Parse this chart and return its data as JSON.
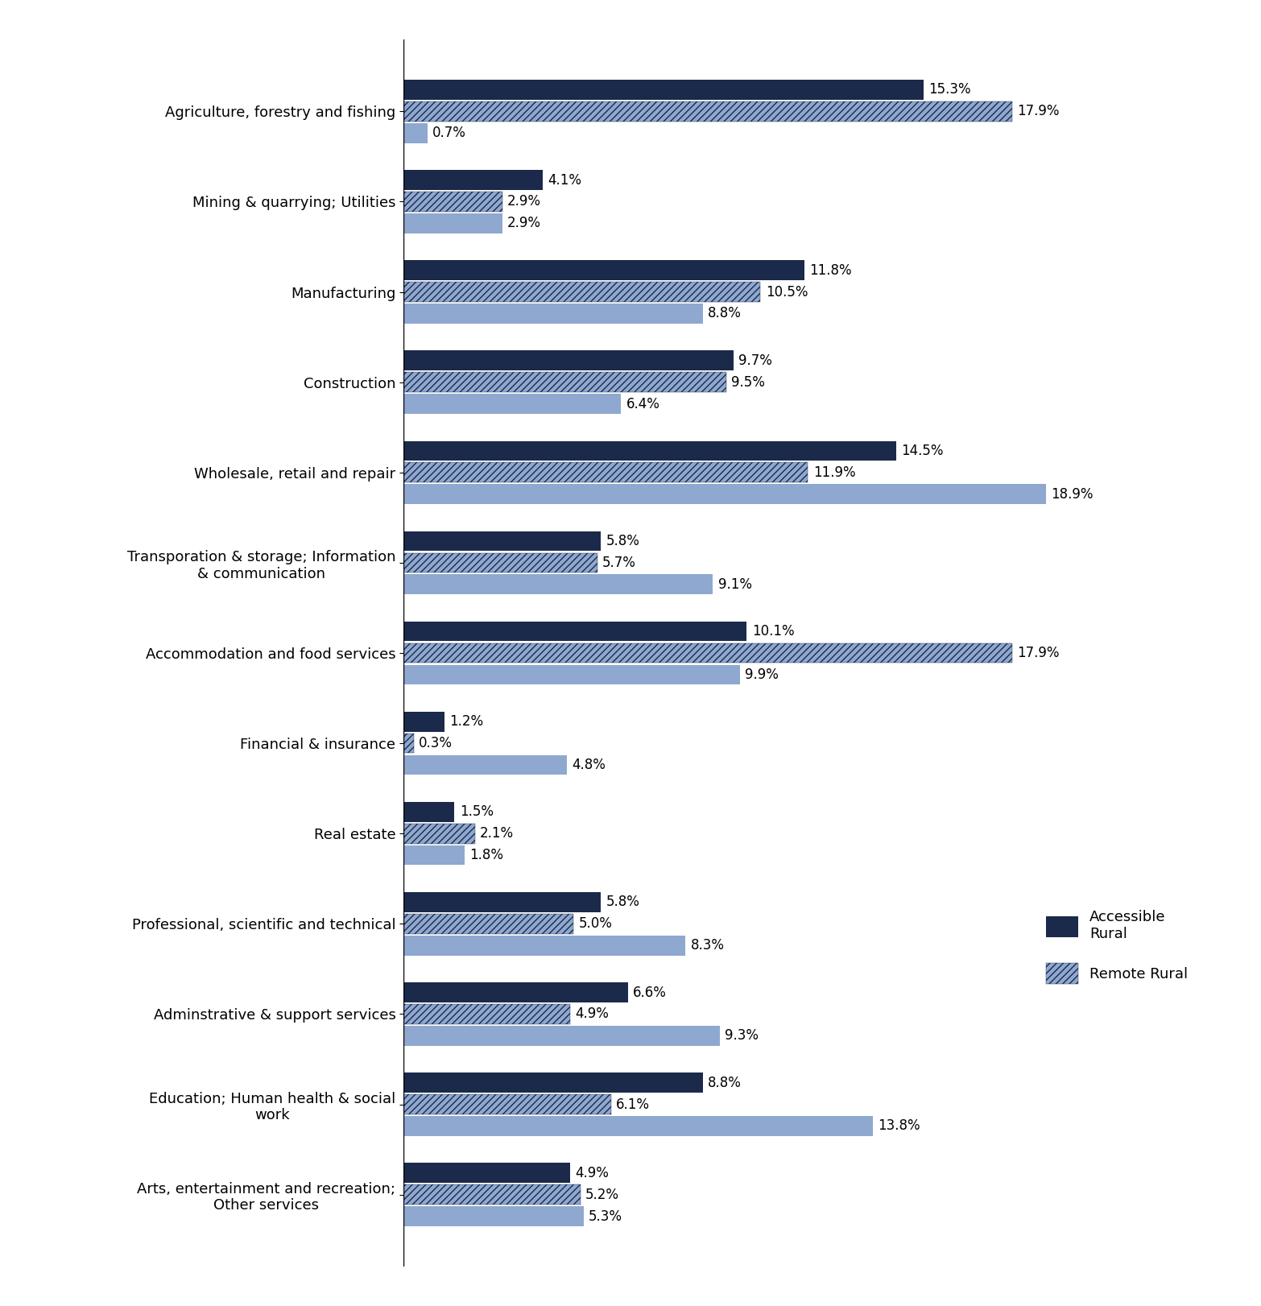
{
  "categories": [
    "Agriculture, forestry and fishing",
    "Mining & quarrying; Utilities",
    "Manufacturing",
    "Construction",
    "Wholesale, retail and repair",
    "Transporation & storage; Information\n& communication",
    "Accommodation and food services",
    "Financial & insurance",
    "Real estate",
    "Professional, scientific and technical",
    "Adminstrative & support services",
    "Education; Human health & social\nwork",
    "Arts, entertainment and recreation;\nOther services"
  ],
  "accessible_rural": [
    15.3,
    4.1,
    11.8,
    9.7,
    14.5,
    5.8,
    10.1,
    1.2,
    1.5,
    5.8,
    6.6,
    8.8,
    4.9
  ],
  "remote_rural": [
    17.9,
    2.9,
    10.5,
    9.5,
    11.9,
    5.7,
    17.9,
    0.3,
    2.1,
    5.0,
    4.9,
    6.1,
    5.2
  ],
  "urban": [
    0.7,
    2.9,
    8.8,
    6.4,
    18.9,
    9.1,
    9.9,
    4.8,
    1.8,
    8.3,
    9.3,
    13.8,
    5.3
  ],
  "accessible_rural_labels": [
    "15.3%",
    "4.1%",
    "11.8%",
    "9.7%",
    "14.5%",
    "5.8%",
    "10.1%",
    "1.2%",
    "1.5%",
    "5.8%",
    "6.6%",
    "8.8%",
    "4.9%"
  ],
  "remote_rural_labels": [
    "17.9%",
    "2.9%",
    "10.5%",
    "9.5%",
    "11.9%",
    "5.7%",
    "17.9%",
    "0.3%",
    "2.1%",
    "5.0%",
    "4.9%",
    "6.1%",
    "5.2%"
  ],
  "urban_labels": [
    "0.7%",
    "2.9%",
    "8.8%",
    "6.4%",
    "18.9%",
    "9.1%",
    "9.9%",
    "4.8%",
    "1.8%",
    "8.3%",
    "9.3%",
    "13.8%",
    "5.3%"
  ],
  "color_accessible_rural": "#1b2a4a",
  "color_remote_rural_face": "#8fa8d0",
  "color_remote_rural_hatch": "#1b2a4a",
  "color_urban": "#8fa8d0",
  "bar_height": 0.22,
  "bar_gap": 0.02,
  "xlim": [
    0,
    23
  ],
  "figsize": [
    15.66,
    16.22
  ],
  "dpi": 100,
  "label_fontsize": 12,
  "ytick_fontsize": 13
}
